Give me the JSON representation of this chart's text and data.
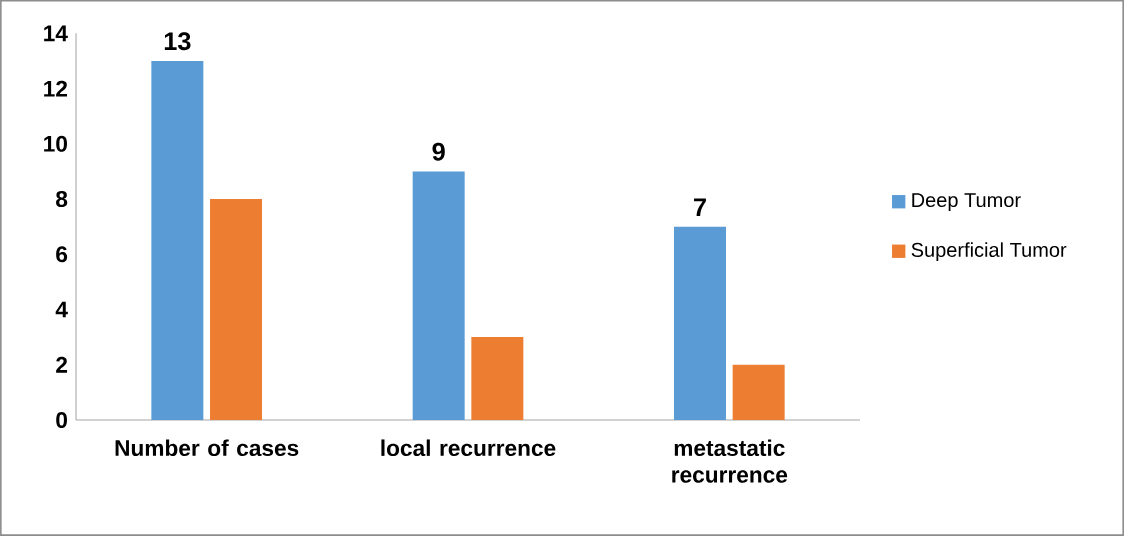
{
  "chart_data": {
    "type": "bar",
    "categories": [
      "Number of cases",
      "local recurrence",
      "metastatic recurrence"
    ],
    "series": [
      {
        "name": "Deep Tumor",
        "color": "#5b9bd5",
        "values": [
          13,
          9,
          7
        ],
        "value_labels": [
          "13",
          "9",
          "7"
        ]
      },
      {
        "name": "Superficial Tumor",
        "color": "#ed7d31",
        "values": [
          8,
          3,
          2
        ]
      }
    ],
    "ylim": [
      0,
      14
    ],
    "yticks": [
      0,
      2,
      4,
      6,
      8,
      10,
      12,
      14
    ],
    "legend": "right",
    "grid": false
  }
}
